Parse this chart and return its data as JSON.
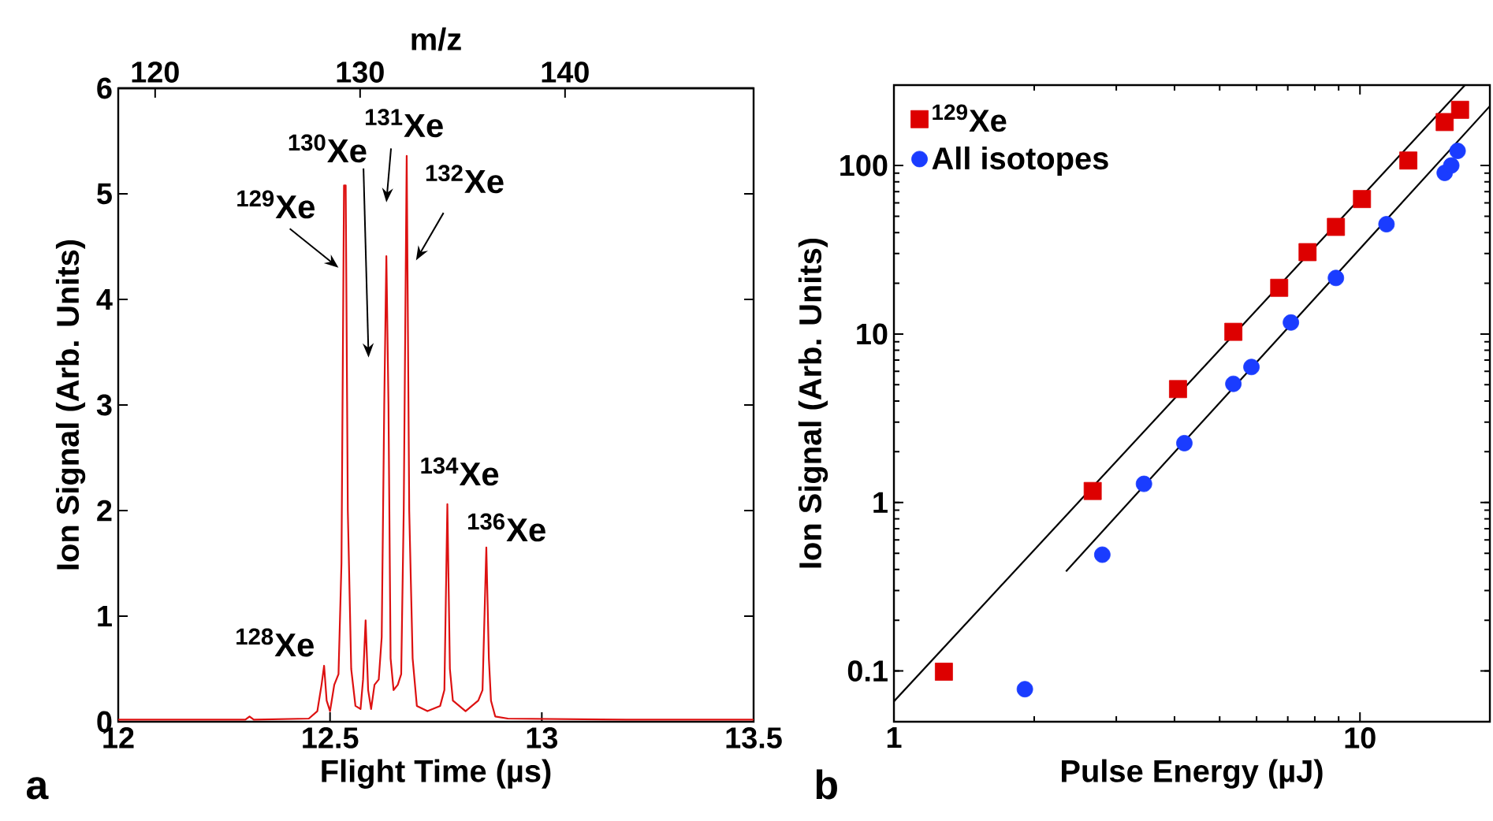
{
  "chart_data": [
    {
      "type": "line",
      "xlabel": "Flight Time (µs)",
      "ylabel": "Ion Signal (Arb. Units)",
      "x2label": "m/z",
      "xlim": [
        12,
        13.5
      ],
      "xticks": [
        12,
        12.5,
        13,
        13.5
      ],
      "ylim": [
        0,
        6
      ],
      "yticks": [
        0,
        1,
        2,
        3,
        4,
        5,
        6
      ],
      "x2lim": [
        118.2,
        149.2
      ],
      "x2ticks": [
        120,
        130,
        140
      ],
      "grid": false,
      "legend": false,
      "series": [
        {
          "color": "#dd1111",
          "marker": "none",
          "x": [
            12,
            12.3,
            12.31,
            12.32,
            12.45,
            12.47,
            12.48,
            12.486,
            12.492,
            12.5,
            12.51,
            12.52,
            12.527,
            12.533,
            12.537,
            12.542,
            12.55,
            12.56,
            12.572,
            12.578,
            12.584,
            12.59,
            12.597,
            12.605,
            12.615,
            12.622,
            12.628,
            12.633,
            12.638,
            12.643,
            12.65,
            12.66,
            12.668,
            12.674,
            12.681,
            12.687,
            12.695,
            12.705,
            12.73,
            12.76,
            12.77,
            12.777,
            12.783,
            12.79,
            12.82,
            12.85,
            12.86,
            12.869,
            12.875,
            12.88,
            12.89,
            12.92,
            13.2,
            13.5
          ],
          "values": [
            0.02,
            0.02,
            0.05,
            0.02,
            0.03,
            0.1,
            0.35,
            0.53,
            0.2,
            0.1,
            0.35,
            0.45,
            1.5,
            5.08,
            5.08,
            2.0,
            0.5,
            0.15,
            0.12,
            0.4,
            0.96,
            0.3,
            0.12,
            0.35,
            0.4,
            0.8,
            3.0,
            4.41,
            3.0,
            0.6,
            0.3,
            0.35,
            0.45,
            2.0,
            5.36,
            2.0,
            0.6,
            0.15,
            0.1,
            0.15,
            0.3,
            2.06,
            0.5,
            0.2,
            0.1,
            0.2,
            0.3,
            1.65,
            0.6,
            0.2,
            0.05,
            0.03,
            0.02,
            0.02
          ]
        }
      ],
      "annotations": [
        {
          "text": "$^{128}$Xe",
          "x": 12.486,
          "y": 0.53
        },
        {
          "text": "$^{129}$Xe",
          "x": 12.537,
          "y": 5.08
        },
        "$^{130}$Xe",
        "$^{131}$Xe",
        {
          "text": "$^{132}$Xe",
          "x": 12.681,
          "y": 5.36
        },
        {
          "text": "$^{134}$Xe",
          "x": 12.777,
          "y": 2.06
        },
        {
          "text": "$^{136}$Xe",
          "x": 12.869,
          "y": 1.65
        },
        "a"
      ]
    },
    {
      "type": "scatter",
      "xlabel": "Pulse Energy (µJ)",
      "ylabel": "Ion Signal (Arb. Units)",
      "log": "xy",
      "xlim": [
        1,
        19
      ],
      "xticks": [
        1,
        10
      ],
      "ylim": [
        0.05,
        300
      ],
      "yticks": [
        0.1,
        1,
        10,
        100
      ],
      "grid": false,
      "legend": "top left",
      "series": [
        {
          "name": "$^{129}$Xe",
          "color": "#dd0000",
          "marker": "square",
          "x": [
            1.28,
            2.67,
            4.07,
            5.35,
            6.71,
            7.72,
            8.88,
            10.1,
            12.7,
            15.2,
            16.4
          ],
          "values": [
            0.099,
            1.17,
            4.71,
            10.3,
            18.8,
            30.6,
            43.2,
            63.2,
            107,
            181,
            214
          ]
        },
        {
          "name": "All isotopes",
          "color": "#1a3cff",
          "marker": "circle",
          "x": [
            1.91,
            2.8,
            3.44,
            4.2,
            5.35,
            5.85,
            7.11,
            8.88,
            11.4,
            15.2,
            15.7,
            16.2
          ],
          "values": [
            0.078,
            0.49,
            1.29,
            2.25,
            5.06,
            6.37,
            11.7,
            21.5,
            44.8,
            90.4,
            100,
            122
          ]
        },
        {
          "type": "line",
          "color": "#000000",
          "marker": "none",
          "x": [
            1,
            16.8
          ],
          "values": [
            0.066,
            300
          ]
        },
        {
          "type": "line",
          "color": "#000000",
          "marker": "none",
          "x": [
            2.34,
            19
          ],
          "values": [
            0.39,
            225
          ]
        }
      ],
      "annotations": [
        "b"
      ]
    }
  ]
}
